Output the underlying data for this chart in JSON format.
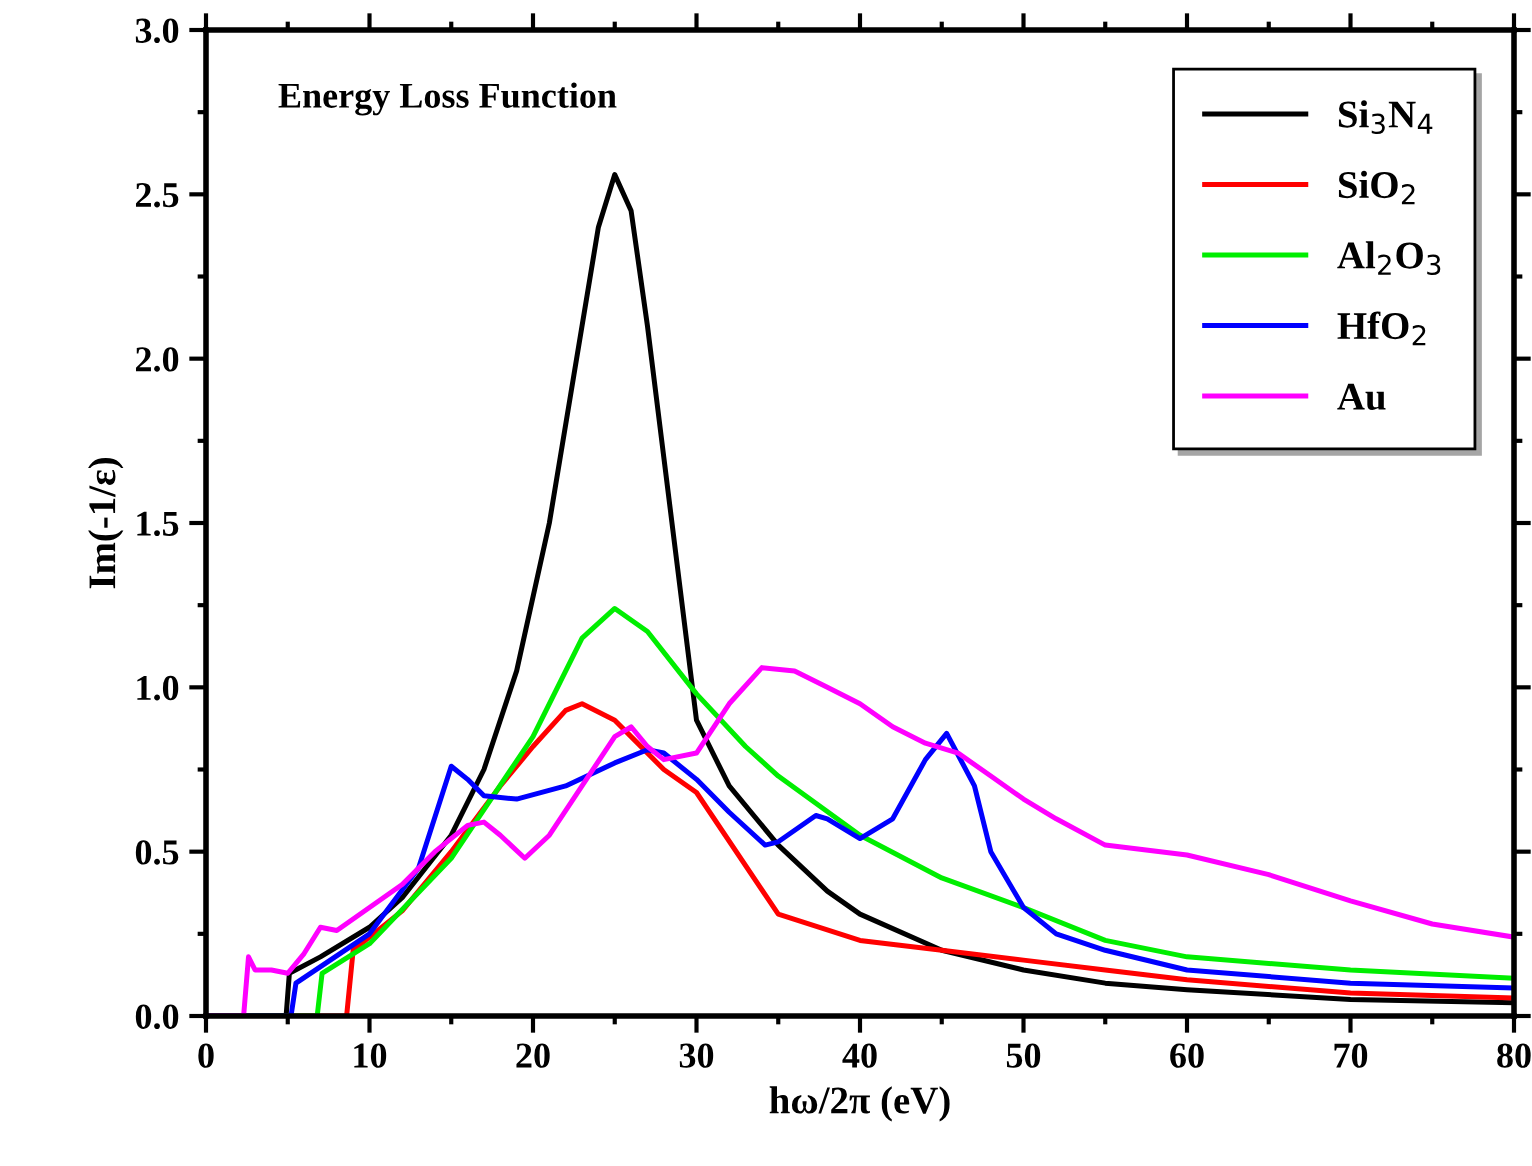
{
  "chart_data": {
    "type": "line",
    "title": "Energy Loss Function",
    "xlabel": "hω/2π (eV)",
    "ylabel": "Im(-1/ε)",
    "xlim": [
      0,
      80
    ],
    "xticks": [
      0,
      10,
      20,
      30,
      40,
      50,
      60,
      70,
      80
    ],
    "ylim": [
      0,
      3.0
    ],
    "yticks": [
      {
        "value": 0,
        "label": "0.0"
      },
      {
        "value": 0.5,
        "label": "0.5"
      },
      {
        "value": 1.0,
        "label": "1.0"
      },
      {
        "value": 1.5,
        "label": "1.5"
      },
      {
        "value": 2.0,
        "label": "2.0"
      },
      {
        "value": 2.5,
        "label": "2.5"
      },
      {
        "value": 3.0,
        "label": "3.0"
      }
    ],
    "legend": "top right",
    "grid": false,
    "series": [
      {
        "name": "Si$_{3}$N$_{4}$",
        "color": "#000000",
        "x": [
          0,
          4.9,
          5.1,
          7,
          10,
          12,
          15,
          17,
          19,
          21,
          22.5,
          24,
          25,
          26,
          27,
          28,
          29,
          30,
          32,
          35,
          38,
          40,
          45,
          50,
          55,
          60,
          70,
          80
        ],
        "values": [
          0,
          0,
          0.13,
          0.18,
          0.27,
          0.36,
          0.55,
          0.75,
          1.05,
          1.5,
          1.95,
          2.4,
          2.56,
          2.45,
          2.1,
          1.7,
          1.3,
          0.9,
          0.7,
          0.52,
          0.38,
          0.31,
          0.2,
          0.14,
          0.1,
          0.08,
          0.05,
          0.04
        ]
      },
      {
        "name": "SiO$_{2}$",
        "color": "#ff0000",
        "x": [
          0,
          8.6,
          9.0,
          12,
          15,
          18,
          20,
          22,
          23,
          25,
          26,
          28,
          30,
          35,
          40,
          45,
          50,
          55,
          60,
          70,
          80
        ],
        "values": [
          0,
          0,
          0.2,
          0.32,
          0.5,
          0.7,
          0.82,
          0.93,
          0.95,
          0.9,
          0.85,
          0.75,
          0.68,
          0.31,
          0.23,
          0.2,
          0.17,
          0.14,
          0.11,
          0.07,
          0.055
        ]
      },
      {
        "name": "Al$_{2}$O$_{3}$",
        "color": "#00ee00",
        "x": [
          0,
          6.8,
          7.1,
          10,
          15,
          20,
          23,
          25,
          27,
          30,
          33,
          35,
          40,
          45,
          50,
          55,
          60,
          70,
          80
        ],
        "values": [
          0,
          0,
          0.13,
          0.22,
          0.48,
          0.85,
          1.15,
          1.24,
          1.17,
          0.98,
          0.82,
          0.73,
          0.55,
          0.42,
          0.33,
          0.23,
          0.18,
          0.14,
          0.115
        ]
      },
      {
        "name": "HfO$_{2}$",
        "color": "#0000ff",
        "x": [
          0,
          5.2,
          5.5,
          10,
          13,
          15,
          16,
          17,
          19,
          22,
          25,
          27,
          28,
          30,
          32,
          34.2,
          35,
          37.3,
          38,
          40,
          42,
          44,
          45.3,
          47,
          48,
          50,
          52,
          55,
          60,
          70,
          80
        ],
        "values": [
          0,
          0,
          0.1,
          0.25,
          0.45,
          0.76,
          0.72,
          0.67,
          0.66,
          0.7,
          0.77,
          0.81,
          0.8,
          0.72,
          0.62,
          0.52,
          0.53,
          0.61,
          0.6,
          0.54,
          0.6,
          0.78,
          0.86,
          0.7,
          0.5,
          0.33,
          0.25,
          0.2,
          0.14,
          0.1,
          0.085
        ]
      },
      {
        "name": "Au",
        "color": "#ff00ff",
        "x": [
          0,
          2.3,
          2.6,
          3,
          4,
          5,
          6,
          7,
          8,
          10,
          12,
          14,
          16,
          17,
          18,
          19.5,
          21,
          23,
          25,
          26,
          27,
          28,
          30,
          32,
          34,
          36,
          38,
          40,
          42,
          44,
          46,
          48,
          50,
          52,
          55,
          60,
          65,
          70,
          75,
          80
        ],
        "values": [
          0,
          0,
          0.18,
          0.14,
          0.14,
          0.13,
          0.19,
          0.27,
          0.26,
          0.33,
          0.4,
          0.5,
          0.58,
          0.59,
          0.55,
          0.48,
          0.55,
          0.7,
          0.85,
          0.88,
          0.82,
          0.78,
          0.8,
          0.95,
          1.06,
          1.05,
          1.0,
          0.95,
          0.88,
          0.83,
          0.8,
          0.73,
          0.66,
          0.6,
          0.52,
          0.49,
          0.43,
          0.35,
          0.28,
          0.24
        ]
      }
    ]
  }
}
